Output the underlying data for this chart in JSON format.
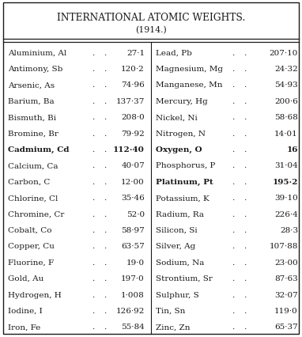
{
  "title1": "INTERNATIONAL ATOMIC WEIGHTS.",
  "title2": "(1914.)",
  "left_elements": [
    [
      "Aluminium, Al",
      "27·1"
    ],
    [
      "Antimony, Sb",
      "120·2"
    ],
    [
      "Arsenic, As",
      "74·96"
    ],
    [
      "Barium, Ba",
      "137·37"
    ],
    [
      "Bismuth, Bi",
      "208·0"
    ],
    [
      "Bromine, Br",
      "79·92"
    ],
    [
      "Cadmium, Cd",
      "112·40"
    ],
    [
      "Calcium, Ca",
      "40·07"
    ],
    [
      "Carbon, C",
      "12·00"
    ],
    [
      "Chlorine, Cl",
      "35·46"
    ],
    [
      "Chromine, Cr",
      "52·0"
    ],
    [
      "Cobalt, Co",
      "58·97"
    ],
    [
      "Copper, Cu",
      "63·57"
    ],
    [
      "Fluorine, F",
      "19·0"
    ],
    [
      "Gold, Au",
      "197·0"
    ],
    [
      "Hydrogen, H",
      "1·008"
    ],
    [
      "Iodine, I",
      "126·92"
    ],
    [
      "Iron, Fe",
      "55·84"
    ]
  ],
  "right_elements": [
    [
      "Lead, Pb",
      "207·10"
    ],
    [
      "Magnesium, Mg",
      "24·32"
    ],
    [
      "Manganese, Mn",
      "54·93"
    ],
    [
      "Mercury, Hg",
      "200·6"
    ],
    [
      "Nickel, Ni",
      "58·68"
    ],
    [
      "Nitrogen, N",
      "14·01"
    ],
    [
      "Oxygen, O",
      "16"
    ],
    [
      "Phosphorus, P",
      "31·04"
    ],
    [
      "Platinum, Pt",
      "195·2"
    ],
    [
      "Potassium, K",
      "39·10"
    ],
    [
      "Radium, Ra",
      "226·4"
    ],
    [
      "Silicon, Si",
      "28·3"
    ],
    [
      "Silver, Ag",
      "107·88"
    ],
    [
      "Sodium, Na",
      "23·00"
    ],
    [
      "Strontium, Sr",
      "87·63"
    ],
    [
      "Sulphur, S",
      "32·07"
    ],
    [
      "Tin, Sn",
      "119·0"
    ],
    [
      "Zinc, Zn",
      "65·37"
    ]
  ],
  "bold_left": [
    "Cadmium, Cd"
  ],
  "bold_right": [
    "Oxygen, O",
    "Platinum, Pt"
  ],
  "bg_color": "#ffffff",
  "text_color": "#1a1a1a",
  "border_color": "#1a1a1a",
  "font_size": 7.5,
  "title_font_size": 8.8
}
